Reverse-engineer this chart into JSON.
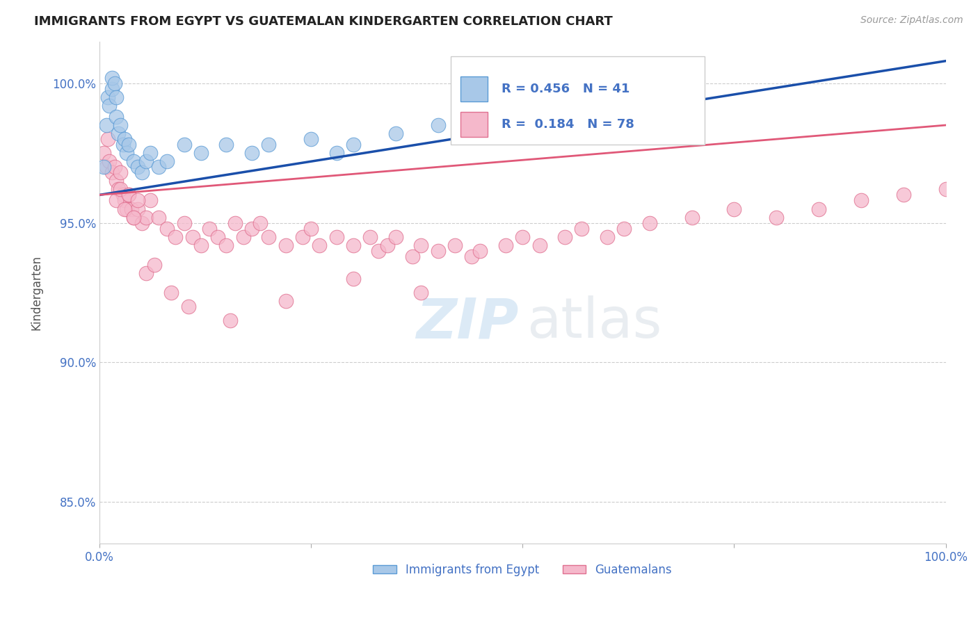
{
  "title": "IMMIGRANTS FROM EGYPT VS GUATEMALAN KINDERGARTEN CORRELATION CHART",
  "source": "Source: ZipAtlas.com",
  "ylabel": "Kindergarten",
  "xlim": [
    0.0,
    100.0
  ],
  "ylim": [
    83.5,
    101.5
  ],
  "yticks": [
    85.0,
    90.0,
    95.0,
    100.0
  ],
  "yticklabels": [
    "85.0%",
    "90.0%",
    "95.0%",
    "100.0%"
  ],
  "xticklabels_show": [
    "0.0%",
    "100.0%"
  ],
  "background_color": "#ffffff",
  "grid_color": "#cccccc",
  "axis_tick_color": "#4472c4",
  "legend_R_egypt": "R = 0.456",
  "legend_N_egypt": "N = 41",
  "legend_R_guatemalans": "R = 0.184",
  "legend_N_guatemalans": "N = 78",
  "egypt_color": "#a8c8e8",
  "egypt_edge_color": "#5b9bd5",
  "guatemalan_color": "#f5b8cb",
  "guatemalan_edge_color": "#e07090",
  "egypt_line_color": "#1a4faa",
  "guatemalan_line_color": "#e05878",
  "egypt_scatter_x": [
    0.5,
    0.8,
    1.0,
    1.2,
    1.5,
    1.5,
    1.8,
    2.0,
    2.0,
    2.2,
    2.5,
    2.8,
    3.0,
    3.2,
    3.5,
    4.0,
    4.5,
    5.0,
    5.5,
    6.0,
    7.0,
    8.0,
    10.0,
    12.0,
    15.0,
    18.0,
    20.0,
    25.0,
    28.0,
    30.0,
    35.0,
    40.0,
    43.0,
    45.0,
    48.0,
    50.0,
    52.0,
    55.0,
    60.0,
    65.0,
    68.0
  ],
  "egypt_scatter_y": [
    97.0,
    98.5,
    99.5,
    99.2,
    99.8,
    100.2,
    100.0,
    99.5,
    98.8,
    98.2,
    98.5,
    97.8,
    98.0,
    97.5,
    97.8,
    97.2,
    97.0,
    96.8,
    97.2,
    97.5,
    97.0,
    97.2,
    97.8,
    97.5,
    97.8,
    97.5,
    97.8,
    98.0,
    97.5,
    97.8,
    98.2,
    98.5,
    98.8,
    99.0,
    99.2,
    99.0,
    98.8,
    99.0,
    99.5,
    100.0,
    100.2
  ],
  "guatemalan_scatter_x": [
    0.5,
    0.8,
    1.0,
    1.2,
    1.5,
    1.8,
    2.0,
    2.2,
    2.5,
    2.8,
    3.0,
    3.2,
    3.5,
    3.8,
    4.0,
    4.5,
    5.0,
    5.5,
    6.0,
    7.0,
    8.0,
    9.0,
    10.0,
    11.0,
    12.0,
    13.0,
    14.0,
    15.0,
    16.0,
    17.0,
    18.0,
    19.0,
    20.0,
    22.0,
    24.0,
    25.0,
    26.0,
    28.0,
    30.0,
    32.0,
    33.0,
    34.0,
    35.0,
    37.0,
    38.0,
    40.0,
    42.0,
    44.0,
    45.0,
    48.0,
    50.0,
    52.0,
    55.0,
    57.0,
    60.0,
    62.0,
    65.0,
    70.0,
    75.0,
    80.0,
    85.0,
    90.0,
    95.0,
    100.0,
    2.0,
    2.5,
    3.0,
    3.5,
    4.0,
    4.5,
    5.5,
    6.5,
    8.5,
    10.5,
    15.5,
    22.0,
    30.0,
    38.0
  ],
  "guatemalan_scatter_y": [
    97.5,
    97.0,
    98.0,
    97.2,
    96.8,
    97.0,
    96.5,
    96.2,
    96.8,
    96.0,
    95.8,
    95.5,
    96.0,
    95.5,
    95.2,
    95.5,
    95.0,
    95.2,
    95.8,
    95.2,
    94.8,
    94.5,
    95.0,
    94.5,
    94.2,
    94.8,
    94.5,
    94.2,
    95.0,
    94.5,
    94.8,
    95.0,
    94.5,
    94.2,
    94.5,
    94.8,
    94.2,
    94.5,
    94.2,
    94.5,
    94.0,
    94.2,
    94.5,
    93.8,
    94.2,
    94.0,
    94.2,
    93.8,
    94.0,
    94.2,
    94.5,
    94.2,
    94.5,
    94.8,
    94.5,
    94.8,
    95.0,
    95.2,
    95.5,
    95.2,
    95.5,
    95.8,
    96.0,
    96.2,
    95.8,
    96.2,
    95.5,
    96.0,
    95.2,
    95.8,
    93.2,
    93.5,
    92.5,
    92.0,
    91.5,
    92.2,
    93.0,
    92.5
  ]
}
